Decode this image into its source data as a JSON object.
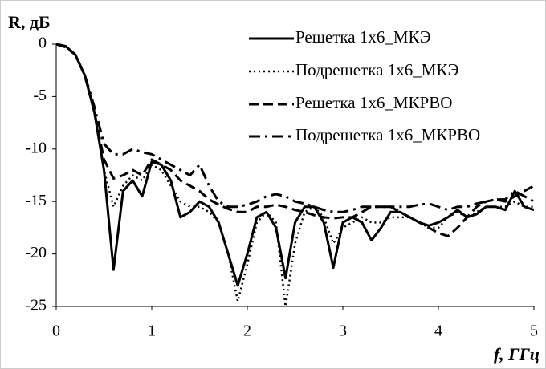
{
  "chart_data": {
    "type": "line",
    "y_label": "R, дБ",
    "x_label": "f, ГГц",
    "x": [
      0,
      0.1,
      0.2,
      0.3,
      0.4,
      0.5,
      0.6,
      0.7,
      0.8,
      0.9,
      1.0,
      1.1,
      1.2,
      1.3,
      1.4,
      1.5,
      1.6,
      1.7,
      1.8,
      1.9,
      2.0,
      2.1,
      2.2,
      2.3,
      2.4,
      2.5,
      2.6,
      2.7,
      2.8,
      2.9,
      3.0,
      3.1,
      3.2,
      3.3,
      3.4,
      3.5,
      3.6,
      3.7,
      3.8,
      3.9,
      4.0,
      4.1,
      4.2,
      4.3,
      4.4,
      4.5,
      4.6,
      4.7,
      4.8,
      4.9,
      5.0
    ],
    "series": [
      {
        "name": "Решетка 1х6_МКЭ",
        "color": "#000000",
        "dash": "solid",
        "values": [
          0,
          -0.2,
          -1,
          -3,
          -6.5,
          -12,
          -21.5,
          -14,
          -13,
          -14.5,
          -11.2,
          -11.5,
          -13,
          -16.5,
          -16,
          -15,
          -15.5,
          -17,
          -20,
          -23,
          -20,
          -16.5,
          -16,
          -17.5,
          -22.3,
          -17,
          -15.5,
          -15.5,
          -17,
          -21.3,
          -17,
          -16.5,
          -17,
          -18.7,
          -17.5,
          -16,
          -16,
          -16.5,
          -17,
          -17.3,
          -17,
          -16.5,
          -15.8,
          -16.5,
          -16.2,
          -15.5,
          -15.5,
          -15.8,
          -14,
          -15.5,
          -15.8
        ]
      },
      {
        "name": "Подрешетка 1х6_МКЭ",
        "color": "#000000",
        "dash": "dotted",
        "values": [
          0,
          -0.2,
          -1,
          -3,
          -6.5,
          -12,
          -15.5,
          -13.5,
          -12.5,
          -13,
          -11.5,
          -12,
          -13.5,
          -15,
          -15.5,
          -15.5,
          -16,
          -17,
          -20,
          -24.5,
          -21,
          -17,
          -16,
          -17,
          -25,
          -19,
          -16,
          -15.5,
          -16.5,
          -19,
          -17.5,
          -17,
          -16.5,
          -17,
          -17,
          -16.5,
          -16.5,
          -16.5,
          -17,
          -17.5,
          -17.5,
          -16.5,
          -16,
          -16.5,
          -16,
          -15.5,
          -15.5,
          -15.5,
          -15,
          -15.5,
          -15.5
        ]
      },
      {
        "name": "Решетка 1х6_МКРВО",
        "color": "#000000",
        "dash": "dashed",
        "values": [
          0,
          -0.3,
          -1,
          -3,
          -6.5,
          -11,
          -12.8,
          -12.5,
          -12,
          -12.5,
          -11,
          -11.5,
          -12,
          -13,
          -13.5,
          -14,
          -14.8,
          -15.3,
          -15.7,
          -16,
          -16,
          -15.5,
          -15.5,
          -15.3,
          -15.5,
          -15.8,
          -16,
          -16.3,
          -16.5,
          -16.6,
          -16.5,
          -16.5,
          -16,
          -15.5,
          -15.5,
          -15.5,
          -16,
          -16.5,
          -17,
          -17.5,
          -18,
          -18.3,
          -17.5,
          -16.5,
          -15.5,
          -15,
          -14.8,
          -15,
          -14.5,
          -14,
          -13.5
        ]
      },
      {
        "name": "Подрешетка 1х6_МКРВО",
        "color": "#000000",
        "dash": "dashdot",
        "values": [
          0,
          -0.2,
          -1,
          -3,
          -6,
          -9.5,
          -10.5,
          -10.5,
          -10,
          -10.3,
          -10.5,
          -11,
          -11.5,
          -12,
          -12.5,
          -11.5,
          -13.5,
          -15,
          -15.5,
          -15.5,
          -15.3,
          -15,
          -14.5,
          -14.3,
          -14.5,
          -15,
          -15.2,
          -15.5,
          -15.8,
          -16,
          -16,
          -15.8,
          -15.5,
          -15.5,
          -15.5,
          -15.5,
          -15.5,
          -15.5,
          -15.3,
          -15.2,
          -15.5,
          -15.8,
          -15.5,
          -15.5,
          -15.2,
          -15,
          -14.8,
          -14.8,
          -14,
          -14.5,
          -15
        ]
      }
    ],
    "xlim": [
      0,
      5
    ],
    "xticks": [
      0,
      1,
      2,
      3,
      4,
      5
    ],
    "ylim": [
      -25,
      0
    ],
    "yticks": [
      0,
      -5,
      -10,
      -15,
      -20,
      -25
    ],
    "grid": false,
    "legend": "upper right"
  }
}
